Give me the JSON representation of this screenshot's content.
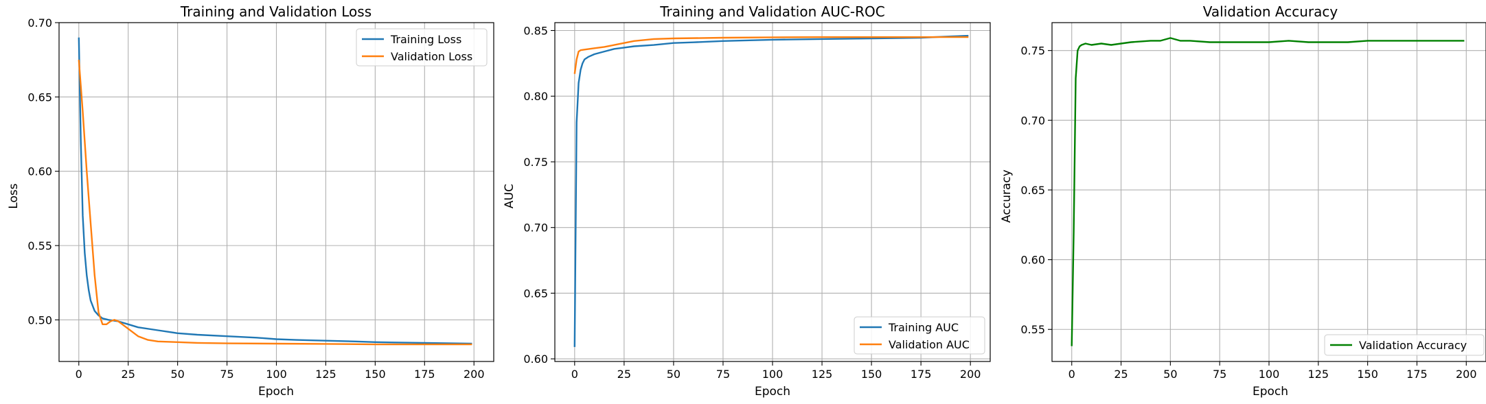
{
  "chart_data": [
    {
      "type": "line",
      "title": "Training and Validation Loss",
      "xlabel": "Epoch",
      "ylabel": "Loss",
      "xlim": [
        -10,
        210
      ],
      "ylim": [
        0.472,
        0.7
      ],
      "xticks": [
        "0",
        "25",
        "50",
        "75",
        "100",
        "125",
        "150",
        "175",
        "200"
      ],
      "xtick_values": [
        0,
        25,
        50,
        75,
        100,
        125,
        150,
        175,
        200
      ],
      "yticks": [
        "0.50",
        "0.55",
        "0.60",
        "0.65",
        "0.70"
      ],
      "ytick_values": [
        0.5,
        0.55,
        0.6,
        0.65,
        0.7
      ],
      "grid": true,
      "legend": "top-right",
      "series": [
        {
          "name": "Training Loss",
          "color": "#1f77b4",
          "x": [
            0,
            1,
            2,
            3,
            4,
            5,
            6,
            8,
            10,
            12,
            15,
            20,
            25,
            30,
            40,
            50,
            60,
            75,
            90,
            100,
            110,
            125,
            140,
            150,
            160,
            175,
            190,
            199
          ],
          "y": [
            0.69,
            0.62,
            0.57,
            0.545,
            0.53,
            0.52,
            0.513,
            0.506,
            0.503,
            0.501,
            0.5,
            0.499,
            0.497,
            0.495,
            0.493,
            0.491,
            0.49,
            0.489,
            0.488,
            0.487,
            0.4865,
            0.486,
            0.4855,
            0.485,
            0.4848,
            0.4845,
            0.4842,
            0.484
          ]
        },
        {
          "name": "Validation Loss",
          "color": "#ff7f0e",
          "x": [
            0,
            2,
            4,
            6,
            8,
            10,
            12,
            14,
            16,
            18,
            20,
            22,
            25,
            30,
            35,
            40,
            50,
            60,
            75,
            100,
            125,
            150,
            175,
            199
          ],
          "y": [
            0.675,
            0.64,
            0.6,
            0.565,
            0.53,
            0.505,
            0.497,
            0.497,
            0.499,
            0.5,
            0.499,
            0.497,
            0.494,
            0.489,
            0.4865,
            0.4855,
            0.485,
            0.4845,
            0.4842,
            0.484,
            0.4838,
            0.4835,
            0.4835,
            0.4835
          ]
        }
      ]
    },
    {
      "type": "line",
      "title": "Training and Validation AUC-ROC",
      "xlabel": "Epoch",
      "ylabel": "AUC",
      "xlim": [
        -10,
        210
      ],
      "ylim": [
        0.598,
        0.856
      ],
      "xticks": [
        "0",
        "25",
        "50",
        "75",
        "100",
        "125",
        "150",
        "175",
        "200"
      ],
      "xtick_values": [
        0,
        25,
        50,
        75,
        100,
        125,
        150,
        175,
        200
      ],
      "yticks": [
        "0.60",
        "0.65",
        "0.70",
        "0.75",
        "0.80",
        "0.85"
      ],
      "ytick_values": [
        0.6,
        0.65,
        0.7,
        0.75,
        0.8,
        0.85
      ],
      "grid": true,
      "legend": "bottom-right",
      "series": [
        {
          "name": "Training AUC",
          "color": "#1f77b4",
          "x": [
            0,
            1,
            2,
            3,
            4,
            5,
            7,
            10,
            15,
            20,
            25,
            30,
            40,
            50,
            60,
            75,
            100,
            125,
            150,
            175,
            190,
            199
          ],
          "y": [
            0.609,
            0.78,
            0.81,
            0.82,
            0.825,
            0.828,
            0.83,
            0.832,
            0.834,
            0.836,
            0.837,
            0.838,
            0.839,
            0.8405,
            0.841,
            0.842,
            0.843,
            0.8435,
            0.844,
            0.8445,
            0.8455,
            0.846
          ]
        },
        {
          "name": "Validation AUC",
          "color": "#ff7f0e",
          "x": [
            0,
            1,
            2,
            3,
            5,
            10,
            15,
            20,
            25,
            30,
            40,
            50,
            75,
            100,
            125,
            150,
            175,
            199
          ],
          "y": [
            0.817,
            0.828,
            0.834,
            0.835,
            0.8355,
            0.8365,
            0.8375,
            0.839,
            0.8405,
            0.842,
            0.8435,
            0.844,
            0.8445,
            0.8448,
            0.845,
            0.845,
            0.845,
            0.845
          ]
        }
      ]
    },
    {
      "type": "line",
      "title": "Validation Accuracy",
      "xlabel": "Epoch",
      "ylabel": "Accuracy",
      "xlim": [
        -10,
        210
      ],
      "ylim": [
        0.527,
        0.77
      ],
      "xticks": [
        "0",
        "25",
        "50",
        "75",
        "100",
        "125",
        "150",
        "175",
        "200"
      ],
      "xtick_values": [
        0,
        25,
        50,
        75,
        100,
        125,
        150,
        175,
        200
      ],
      "yticks": [
        "0.55",
        "0.60",
        "0.65",
        "0.70",
        "0.75"
      ],
      "ytick_values": [
        0.55,
        0.6,
        0.65,
        0.7,
        0.75
      ],
      "grid": true,
      "legend": "bottom-right",
      "series": [
        {
          "name": "Validation Accuracy",
          "color": "#008000",
          "x": [
            0,
            1,
            2,
            3,
            4,
            5,
            7,
            10,
            15,
            20,
            25,
            30,
            40,
            45,
            50,
            55,
            60,
            70,
            80,
            90,
            100,
            110,
            120,
            130,
            140,
            150,
            160,
            170,
            175,
            180,
            190,
            199
          ],
          "y": [
            0.538,
            0.62,
            0.73,
            0.75,
            0.753,
            0.754,
            0.755,
            0.754,
            0.755,
            0.754,
            0.755,
            0.756,
            0.757,
            0.757,
            0.759,
            0.757,
            0.757,
            0.756,
            0.756,
            0.756,
            0.756,
            0.757,
            0.756,
            0.756,
            0.756,
            0.757,
            0.757,
            0.757,
            0.757,
            0.757,
            0.757,
            0.757
          ]
        }
      ]
    }
  ]
}
